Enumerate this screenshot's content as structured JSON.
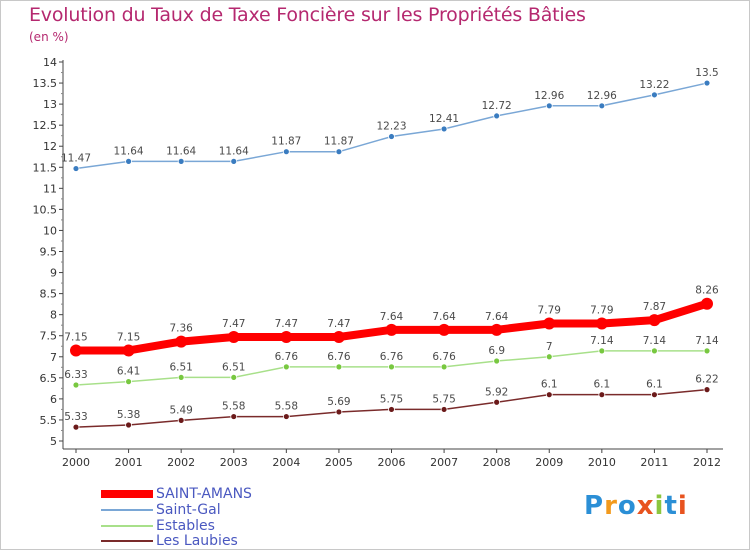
{
  "title": "Evolution du Taux de Taxe Foncière sur les Propriétés Bâties",
  "unit_label": "(en %)",
  "logo": {
    "text": "Proxiti",
    "letters": [
      "P",
      "r",
      "o",
      "x",
      "i",
      "t",
      "i"
    ],
    "colors": [
      "#2b8fd6",
      "#f29a1d",
      "#2b8fd6",
      "#e8531f",
      "#8cc63f",
      "#2b8fd6",
      "#e8531f"
    ]
  },
  "chart_data": {
    "type": "line",
    "title": "Evolution du Taux de Taxe Foncière sur les Propriétés Bâties",
    "ylabel": "(en %)",
    "xlabel": "",
    "x": [
      "2000",
      "2001",
      "2002",
      "2003",
      "2004",
      "2005",
      "2006",
      "2007",
      "2008",
      "2009",
      "2010",
      "2011",
      "2012"
    ],
    "ylim": [
      5,
      14
    ],
    "y_ticks": [
      "5",
      "5.5",
      "6",
      "6.5",
      "7",
      "7.5",
      "8",
      "8.5",
      "9",
      "9.5",
      "10",
      "10.5",
      "11",
      "11.5",
      "12",
      "12.5",
      "13",
      "13.5",
      "14"
    ],
    "grid": false,
    "legend_position": "bottom-left",
    "series": [
      {
        "name": "SAINT-AMANS",
        "color": "#ff0000",
        "point_color": "#ff0000",
        "values": [
          7.15,
          7.15,
          7.36,
          7.47,
          7.47,
          7.47,
          7.64,
          7.64,
          7.64,
          7.79,
          7.79,
          7.87,
          8.26
        ],
        "labels": [
          "7.15",
          "7.15",
          "7.36",
          "7.47",
          "7.47",
          "7.47",
          "7.64",
          "7.64",
          "7.64",
          "7.79",
          "7.79",
          "7.87",
          "8.26"
        ]
      },
      {
        "name": "Saint-Gal",
        "color": "#7aa7d6",
        "point_color": "#3a7cc0",
        "values": [
          11.47,
          11.64,
          11.64,
          11.64,
          11.87,
          11.87,
          12.23,
          12.41,
          12.72,
          12.96,
          12.96,
          13.22,
          13.5
        ],
        "labels": [
          "11.47",
          "11.64",
          "11.64",
          "11.64",
          "11.87",
          "11.87",
          "12.23",
          "12.41",
          "12.72",
          "12.96",
          "12.96",
          "13.22",
          "13.5"
        ]
      },
      {
        "name": "Estables",
        "color": "#a8e08a",
        "point_color": "#78c840",
        "values": [
          6.33,
          6.41,
          6.51,
          6.51,
          6.76,
          6.76,
          6.76,
          6.76,
          6.9,
          7,
          7.14,
          7.14,
          7.14
        ],
        "labels": [
          "6.33",
          "6.41",
          "6.51",
          "6.51",
          "6.76",
          "6.76",
          "6.76",
          "6.76",
          "6.9",
          "7",
          "7.14",
          "7.14",
          "7.14"
        ]
      },
      {
        "name": "Les Laubies",
        "color": "#7a2b2b",
        "point_color": "#6b1a1a",
        "values": [
          5.33,
          5.38,
          5.49,
          5.58,
          5.58,
          5.69,
          5.75,
          5.75,
          5.92,
          6.1,
          6.1,
          6.1,
          6.22
        ],
        "labels": [
          "5.33",
          "5.38",
          "5.49",
          "5.58",
          "5.58",
          "5.69",
          "5.75",
          "5.75",
          "5.92",
          "6.1",
          "6.1",
          "6.1",
          "6.22"
        ]
      }
    ]
  }
}
